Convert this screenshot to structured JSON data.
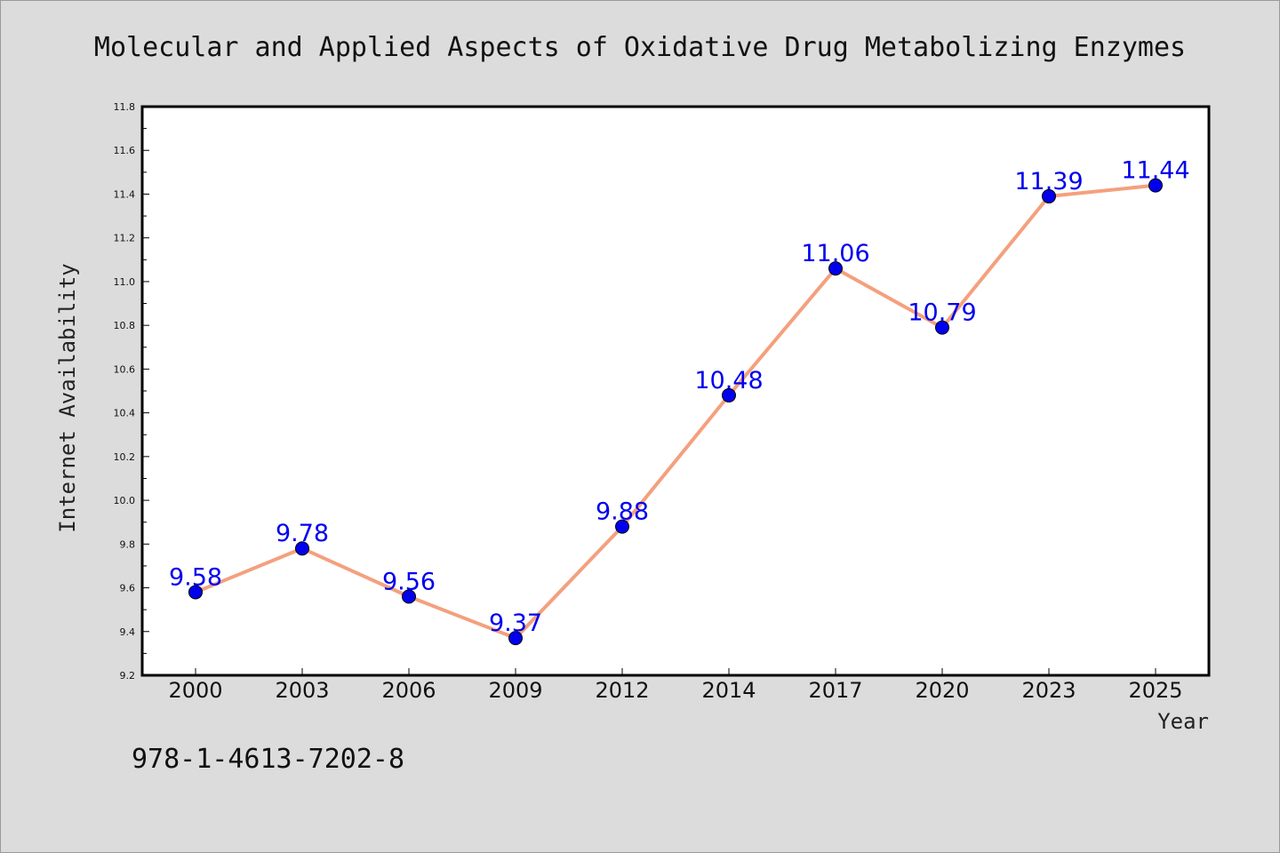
{
  "chart_data": {
    "type": "line",
    "title": "Molecular and Applied Aspects of Oxidative Drug Metabolizing Enzymes",
    "xlabel": "Year",
    "ylabel": "Internet Availability",
    "categories": [
      "2000",
      "2003",
      "2006",
      "2009",
      "2012",
      "2014",
      "2017",
      "2020",
      "2023",
      "2025"
    ],
    "series": [
      {
        "values": [
          9.58,
          9.78,
          9.56,
          9.37,
          9.88,
          10.48,
          11.06,
          10.79,
          11.39,
          11.44
        ]
      }
    ],
    "data_labels": [
      "9.58",
      "9.78",
      "9.56",
      "9.37",
      "9.88",
      "10.48",
      "11.06",
      "10.79",
      "11.39",
      "11.44"
    ],
    "ylim": [
      9.2,
      11.8
    ],
    "yticks": [
      "9.2",
      "9.4",
      "9.6",
      "9.8",
      "10.0",
      "10.2",
      "10.4",
      "10.6",
      "10.8",
      "11.0",
      "11.2",
      "11.4",
      "11.6",
      "11.8"
    ],
    "grid": false,
    "legend": "none",
    "colors": {
      "line": "#f4a07e",
      "marker": "#0000ee",
      "data_label": "#0000ee",
      "background": "#dcdcdc",
      "plot_background": "#ffffff"
    }
  },
  "footer": {
    "isbn": "978-1-4613-7202-8"
  }
}
